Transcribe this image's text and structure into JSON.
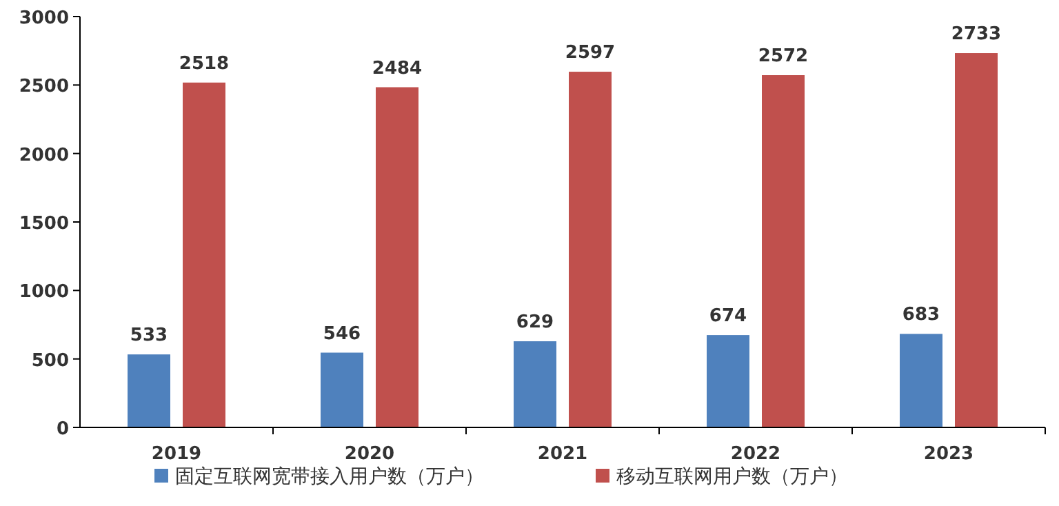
{
  "chart_data": {
    "type": "bar",
    "categories": [
      "2019",
      "2020",
      "2021",
      "2022",
      "2023"
    ],
    "series": [
      {
        "name": "固定互联网宽带接入用户数（万户）",
        "color": "#4f81bd",
        "values": [
          533,
          546,
          629,
          674,
          683
        ]
      },
      {
        "name": "移动互联网用户数（万户）",
        "color": "#c0504d",
        "values": [
          2518,
          2484,
          2597,
          2572,
          2733
        ]
      }
    ],
    "ylim": [
      0,
      3000
    ],
    "yticks": [
      0,
      500,
      1000,
      1500,
      2000,
      2500,
      3000
    ],
    "data_labels": true,
    "legend": "bottom",
    "grid": false
  }
}
